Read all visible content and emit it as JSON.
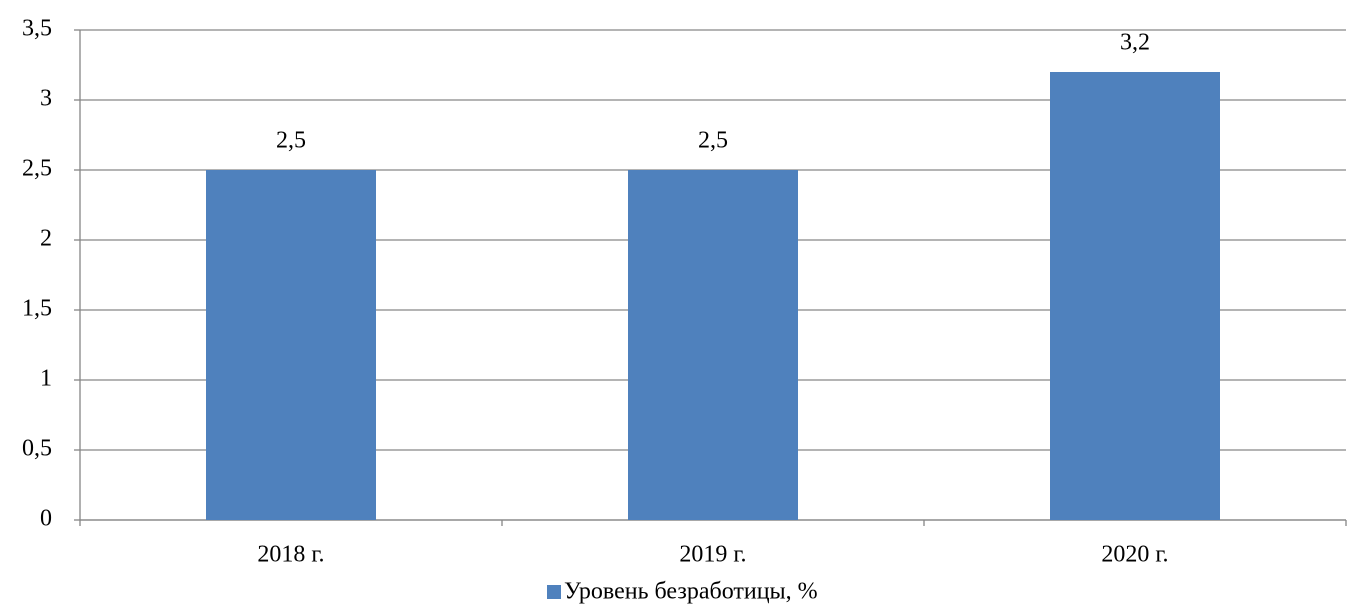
{
  "chart_data": {
    "type": "bar",
    "categories": [
      "2018 г.",
      "2019 г.",
      "2020 г."
    ],
    "series": [
      {
        "name": "Уровень безработицы, %",
        "color": "#4f81bd",
        "values": [
          2.5,
          2.5,
          3.2
        ],
        "value_labels": [
          "2,5",
          "2,5",
          "3,2"
        ]
      }
    ],
    "ylim": [
      0,
      3.5
    ],
    "yticks": [
      0,
      {
        "value": 0.5,
        "label": "0,5"
      },
      1,
      {
        "value": 1.5,
        "label": "1,5"
      },
      2,
      {
        "value": 2.5,
        "label": "2,5"
      },
      3,
      {
        "value": 3.5,
        "label": "3,5"
      }
    ],
    "grid": true,
    "legend": "bottom"
  }
}
